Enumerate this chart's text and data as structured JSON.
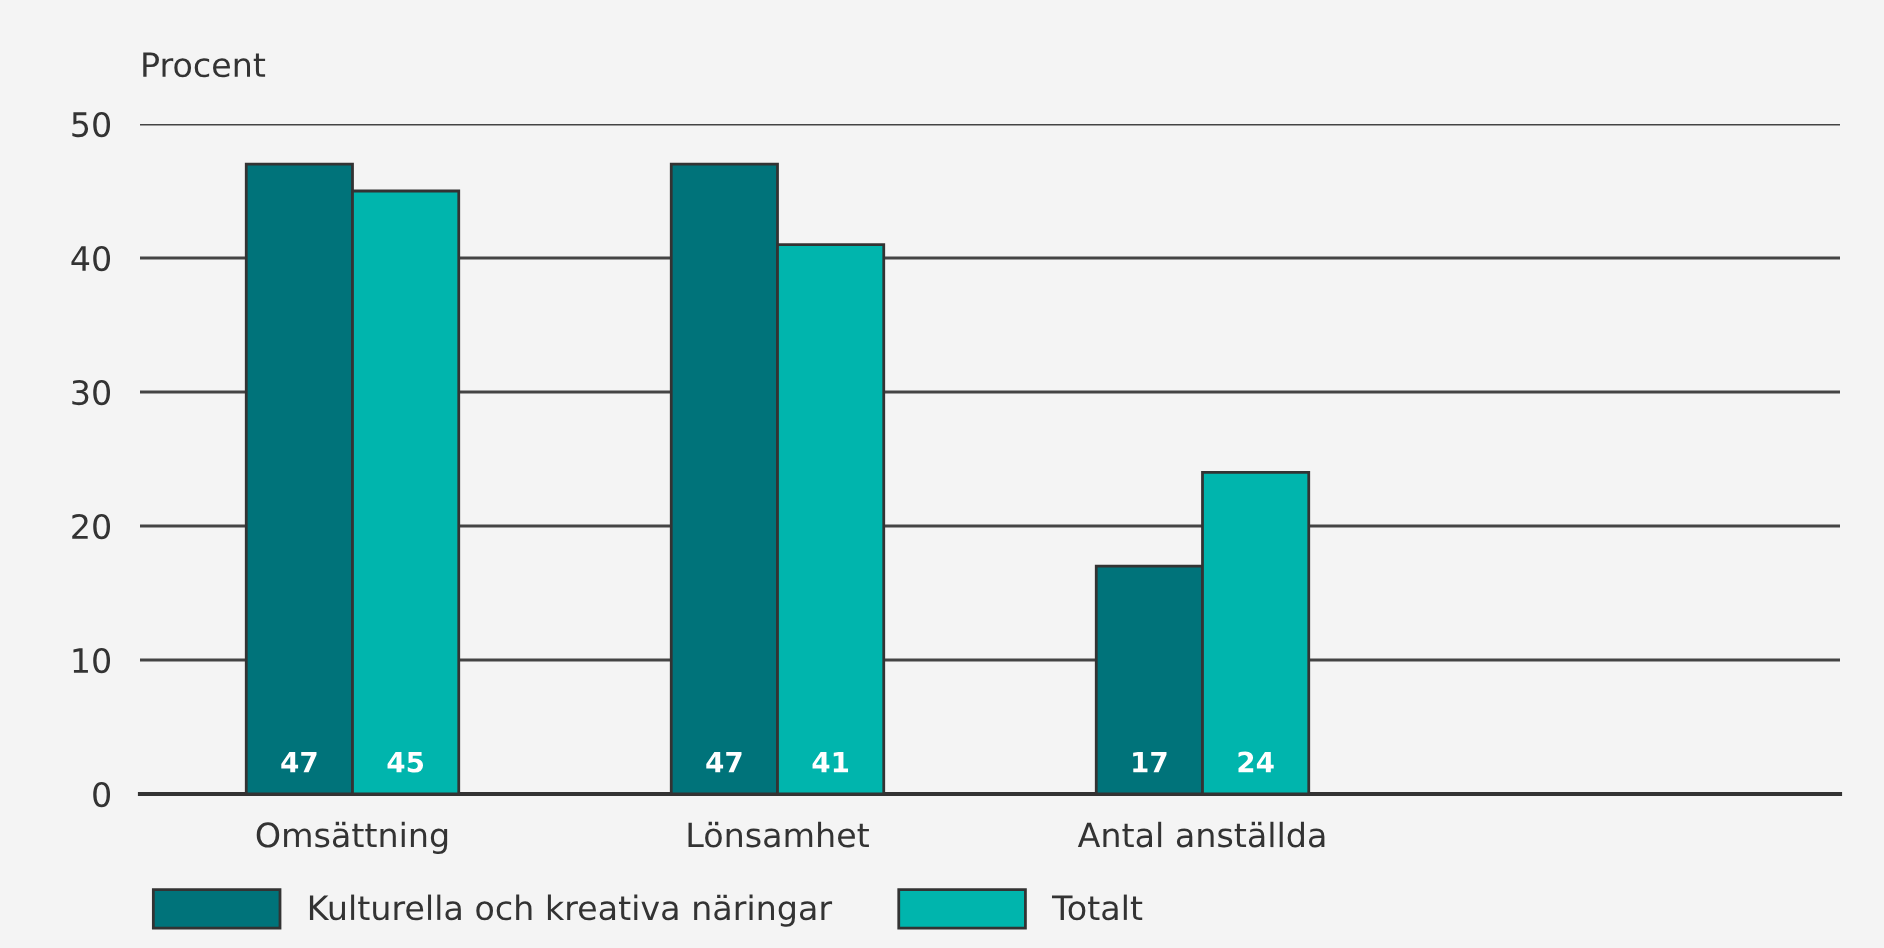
{
  "chart_data": {
    "type": "bar",
    "ylabel": "Procent",
    "categories": [
      "Omsättning",
      "Lönsamhet",
      "Antal anställda",
      null
    ],
    "series": [
      {
        "name": "Kulturella och kreativa näringar",
        "color": "#00737a",
        "values": [
          47,
          47,
          17,
          null
        ],
        "value_labels": [
          "47",
          "47",
          "17",
          null
        ]
      },
      {
        "name": "Totalt",
        "color": "#00b5ad",
        "values": [
          45,
          41,
          24,
          null
        ],
        "value_labels": [
          "45",
          "41",
          "24",
          null
        ]
      }
    ],
    "ylim": [
      0,
      50
    ],
    "yticks": [
      0,
      10,
      20,
      30,
      40,
      50
    ],
    "grid": "y",
    "legend": "bottom left"
  }
}
